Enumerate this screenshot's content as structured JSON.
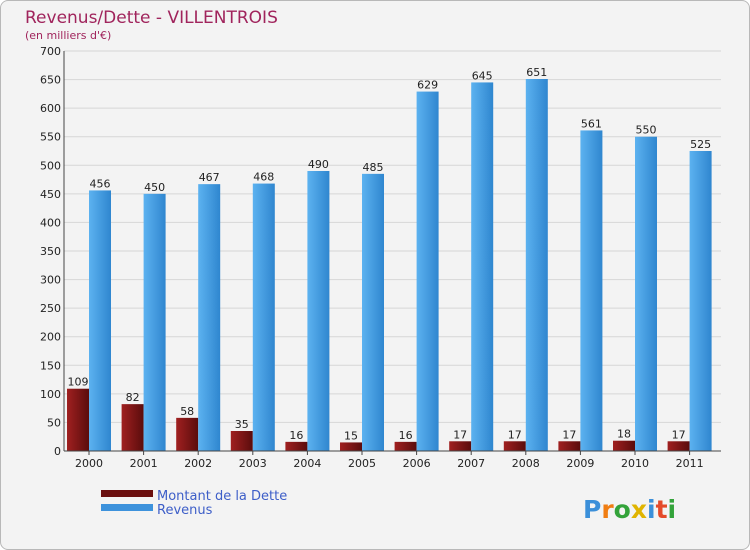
{
  "chart_data": {
    "type": "bar",
    "title": "Revenus/Dette - VILLENTROIS",
    "subtitle": "(en milliers d'€)",
    "categories": [
      "2000",
      "2001",
      "2002",
      "2003",
      "2004",
      "2005",
      "2006",
      "2007",
      "2008",
      "2009",
      "2010",
      "2011"
    ],
    "series": [
      {
        "name": "Montant de la Dette",
        "color": "#8b1a1a",
        "values": [
          109,
          82,
          58,
          35,
          16,
          15,
          16,
          17,
          17,
          17,
          18,
          17
        ]
      },
      {
        "name": "Revenus",
        "color": "#4aa3e6",
        "values": [
          456,
          450,
          467,
          468,
          490,
          485,
          629,
          645,
          651,
          561,
          550,
          525
        ]
      }
    ],
    "ylim": [
      0,
      700
    ],
    "yticks": [
      0,
      50,
      100,
      150,
      200,
      250,
      300,
      350,
      400,
      450,
      500,
      550,
      600,
      650,
      700
    ],
    "grid": true,
    "legend_position": "bottom-left"
  },
  "logo": {
    "letters": [
      "P",
      "r",
      "o",
      "x",
      "i",
      "t",
      "i"
    ],
    "colors": [
      "#3b8fd9",
      "#f07d12",
      "#33a33a",
      "#e0b400",
      "#3b8fd9",
      "#e44a2a",
      "#33a33a"
    ]
  }
}
